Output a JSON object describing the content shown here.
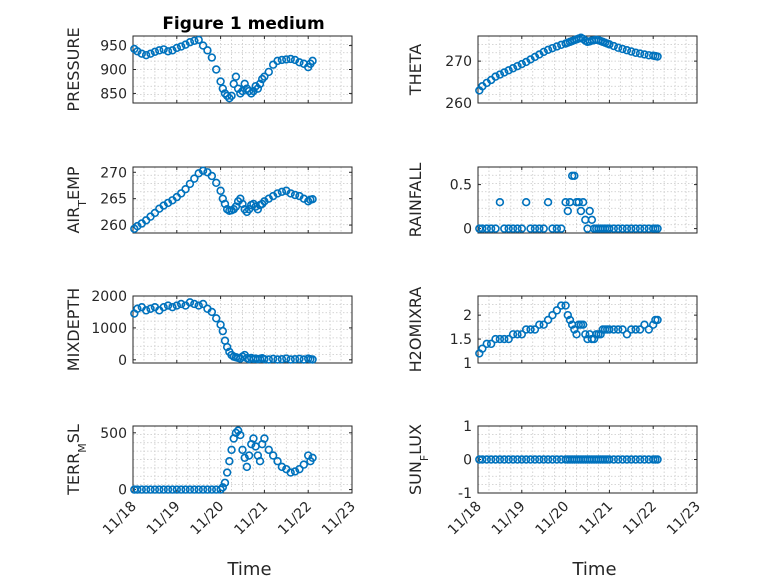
{
  "chart_data": [
    {
      "type": "scatter",
      "title": "Figure 1 medium",
      "ylabel": "PRESSURE",
      "xlabel": "",
      "ylim": [
        830,
        970
      ],
      "yticks": [
        850,
        900,
        950
      ],
      "ytick_labels": [
        "850",
        "900",
        "950"
      ],
      "xlim": [
        0,
        5
      ],
      "xticks": [
        0,
        1,
        2,
        3,
        4,
        5
      ],
      "xtick_labels": [],
      "grid": true,
      "color": "#0072BD",
      "x": [
        0.03,
        0.1,
        0.2,
        0.3,
        0.4,
        0.5,
        0.6,
        0.7,
        0.8,
        0.9,
        1.0,
        1.1,
        1.2,
        1.3,
        1.4,
        1.5,
        1.6,
        1.7,
        1.8,
        1.9,
        2.0,
        2.05,
        2.1,
        2.15,
        2.2,
        2.25,
        2.3,
        2.35,
        2.4,
        2.45,
        2.5,
        2.55,
        2.6,
        2.65,
        2.7,
        2.75,
        2.8,
        2.85,
        2.9,
        2.95,
        3.0,
        3.1,
        3.2,
        3.3,
        3.4,
        3.5,
        3.6,
        3.7,
        3.8,
        3.9,
        4.0,
        4.05,
        4.1
      ],
      "y": [
        943,
        938,
        933,
        930,
        933,
        937,
        940,
        942,
        938,
        940,
        945,
        948,
        952,
        957,
        960,
        962,
        950,
        940,
        925,
        900,
        875,
        860,
        850,
        845,
        840,
        845,
        870,
        885,
        860,
        850,
        855,
        870,
        860,
        855,
        850,
        855,
        865,
        860,
        870,
        880,
        885,
        895,
        910,
        918,
        920,
        921,
        922,
        920,
        915,
        912,
        905,
        912,
        918
      ]
    },
    {
      "type": "scatter",
      "ylabel": "AIR_TEMP",
      "xlabel": "",
      "ylim": [
        258.5,
        271
      ],
      "yticks": [
        260,
        265,
        270
      ],
      "ytick_labels": [
        "260",
        "265",
        "270"
      ],
      "xlim": [
        0,
        5
      ],
      "xticks": [
        0,
        1,
        2,
        3,
        4,
        5
      ],
      "xtick_labels": [],
      "grid": true,
      "color": "#0072BD",
      "x": [
        0.03,
        0.1,
        0.2,
        0.3,
        0.4,
        0.5,
        0.6,
        0.7,
        0.8,
        0.9,
        1.0,
        1.1,
        1.2,
        1.3,
        1.4,
        1.5,
        1.6,
        1.7,
        1.8,
        1.9,
        2.0,
        2.05,
        2.1,
        2.15,
        2.2,
        2.25,
        2.3,
        2.35,
        2.4,
        2.45,
        2.5,
        2.55,
        2.6,
        2.65,
        2.7,
        2.75,
        2.8,
        2.85,
        2.9,
        2.95,
        3.0,
        3.1,
        3.2,
        3.3,
        3.4,
        3.5,
        3.6,
        3.7,
        3.8,
        3.9,
        4.0,
        4.05,
        4.1
      ],
      "y": [
        259.3,
        259.8,
        260.3,
        260.9,
        261.6,
        262.3,
        263.1,
        263.7,
        264.2,
        264.7,
        265.3,
        266.0,
        266.8,
        267.8,
        268.8,
        269.8,
        270.3,
        270.0,
        269.3,
        268.0,
        266.5,
        265.0,
        264.0,
        263.0,
        262.7,
        262.8,
        263.0,
        263.5,
        264.5,
        265.0,
        264.0,
        263.0,
        262.5,
        263.0,
        263.8,
        264.0,
        263.5,
        263.0,
        263.8,
        264.0,
        264.5,
        265.0,
        265.5,
        266.0,
        266.3,
        266.5,
        266.0,
        265.7,
        265.5,
        265.0,
        264.5,
        264.8,
        264.9
      ]
    },
    {
      "type": "scatter",
      "ylabel": "MIXDEPTH",
      "xlabel": "",
      "ylim": [
        -100,
        2000
      ],
      "yticks": [
        0,
        1000,
        2000
      ],
      "ytick_labels": [
        "0",
        "1000",
        "2000"
      ],
      "xlim": [
        0,
        5
      ],
      "xticks": [
        0,
        1,
        2,
        3,
        4,
        5
      ],
      "xtick_labels": [],
      "grid": true,
      "color": "#0072BD",
      "x": [
        0.03,
        0.1,
        0.2,
        0.3,
        0.4,
        0.5,
        0.6,
        0.7,
        0.8,
        0.9,
        1.0,
        1.1,
        1.2,
        1.3,
        1.4,
        1.5,
        1.6,
        1.7,
        1.8,
        1.9,
        2.0,
        2.05,
        2.1,
        2.15,
        2.2,
        2.25,
        2.3,
        2.35,
        2.4,
        2.45,
        2.5,
        2.55,
        2.6,
        2.65,
        2.7,
        2.75,
        2.8,
        2.85,
        2.9,
        2.95,
        3.0,
        3.1,
        3.2,
        3.3,
        3.4,
        3.5,
        3.6,
        3.7,
        3.8,
        3.9,
        4.0,
        4.05,
        4.1
      ],
      "y": [
        1450,
        1600,
        1650,
        1550,
        1600,
        1650,
        1550,
        1650,
        1700,
        1650,
        1700,
        1750,
        1700,
        1800,
        1750,
        1700,
        1750,
        1600,
        1500,
        1300,
        1100,
        900,
        600,
        400,
        250,
        150,
        100,
        80,
        60,
        40,
        100,
        150,
        50,
        20,
        60,
        30,
        40,
        20,
        30,
        50,
        20,
        10,
        30,
        10,
        20,
        40,
        10,
        20,
        30,
        10,
        40,
        20,
        10
      ]
    },
    {
      "type": "scatter",
      "ylabel": "TERR_MSL",
      "xlabel": "Time",
      "ylim": [
        -30,
        560
      ],
      "yticks": [
        0,
        500
      ],
      "ytick_labels": [
        "0",
        "500"
      ],
      "xlim": [
        0,
        5
      ],
      "xticks": [
        0,
        1,
        2,
        3,
        4,
        5
      ],
      "xtick_labels": [
        "11/18",
        "11/19",
        "11/20",
        "11/21",
        "11/22",
        "11/23"
      ],
      "grid": true,
      "color": "#0072BD",
      "x": [
        0.03,
        0.1,
        0.2,
        0.3,
        0.4,
        0.5,
        0.6,
        0.7,
        0.8,
        0.9,
        1.0,
        1.1,
        1.2,
        1.3,
        1.4,
        1.5,
        1.6,
        1.7,
        1.8,
        1.9,
        2.0,
        2.05,
        2.1,
        2.15,
        2.2,
        2.25,
        2.3,
        2.35,
        2.4,
        2.45,
        2.5,
        2.55,
        2.6,
        2.65,
        2.7,
        2.75,
        2.8,
        2.85,
        2.9,
        2.95,
        3.0,
        3.1,
        3.2,
        3.3,
        3.4,
        3.5,
        3.6,
        3.7,
        3.8,
        3.9,
        4.0,
        4.05,
        4.1
      ],
      "y": [
        0,
        0,
        0,
        0,
        0,
        0,
        0,
        0,
        0,
        0,
        0,
        0,
        0,
        0,
        0,
        0,
        0,
        0,
        0,
        0,
        0,
        20,
        60,
        150,
        250,
        350,
        450,
        500,
        520,
        480,
        350,
        280,
        200,
        300,
        400,
        450,
        380,
        300,
        250,
        400,
        450,
        350,
        300,
        250,
        200,
        180,
        150,
        160,
        180,
        220,
        300,
        250,
        280
      ]
    },
    {
      "type": "scatter",
      "ylabel": "THETA",
      "xlabel": "",
      "ylim": [
        260,
        276
      ],
      "yticks": [
        260,
        270
      ],
      "ytick_labels": [
        "260",
        "270"
      ],
      "xlim": [
        0,
        5
      ],
      "xticks": [
        0,
        1,
        2,
        3,
        4,
        5
      ],
      "xtick_labels": [],
      "grid": true,
      "color": "#0072BD",
      "x": [
        0.03,
        0.1,
        0.2,
        0.3,
        0.4,
        0.5,
        0.6,
        0.7,
        0.8,
        0.9,
        1.0,
        1.1,
        1.2,
        1.3,
        1.4,
        1.5,
        1.6,
        1.7,
        1.8,
        1.9,
        2.0,
        2.05,
        2.1,
        2.15,
        2.2,
        2.25,
        2.3,
        2.35,
        2.4,
        2.45,
        2.5,
        2.55,
        2.6,
        2.65,
        2.7,
        2.75,
        2.8,
        2.85,
        2.9,
        2.95,
        3.0,
        3.1,
        3.2,
        3.3,
        3.4,
        3.5,
        3.6,
        3.7,
        3.8,
        3.9,
        4.0,
        4.05,
        4.1
      ],
      "y": [
        263.0,
        264.0,
        264.8,
        265.5,
        266.3,
        266.8,
        267.3,
        267.8,
        268.3,
        268.8,
        269.3,
        269.8,
        270.4,
        271.0,
        271.6,
        272.2,
        272.7,
        273.1,
        273.5,
        273.9,
        274.2,
        274.4,
        274.6,
        274.8,
        275.0,
        275.2,
        275.4,
        275.6,
        275.3,
        274.9,
        274.6,
        274.7,
        274.9,
        275.0,
        275.1,
        275.0,
        274.8,
        274.6,
        274.4,
        274.2,
        274.0,
        273.6,
        273.2,
        272.9,
        272.6,
        272.3,
        272.0,
        271.8,
        271.6,
        271.4,
        271.3,
        271.2,
        271.1
      ]
    },
    {
      "type": "scatter",
      "ylabel": "RAINFALL",
      "xlabel": "",
      "ylim": [
        -0.05,
        0.7
      ],
      "yticks": [
        0,
        0.5
      ],
      "ytick_labels": [
        "0",
        "0.5"
      ],
      "xlim": [
        0,
        5
      ],
      "xticks": [
        0,
        1,
        2,
        3,
        4,
        5
      ],
      "xtick_labels": [],
      "grid": true,
      "color": "#0072BD",
      "x": [
        0.03,
        0.1,
        0.2,
        0.3,
        0.4,
        0.5,
        0.6,
        0.7,
        0.8,
        0.9,
        1.0,
        1.1,
        1.2,
        1.3,
        1.4,
        1.5,
        1.6,
        1.7,
        1.8,
        1.9,
        2.0,
        2.05,
        2.1,
        2.15,
        2.2,
        2.25,
        2.3,
        2.35,
        2.4,
        2.45,
        2.5,
        2.55,
        2.6,
        2.65,
        2.7,
        2.75,
        2.8,
        2.85,
        2.9,
        2.95,
        3.0,
        3.1,
        3.2,
        3.3,
        3.4,
        3.5,
        3.6,
        3.7,
        3.8,
        3.9,
        4.0,
        4.05,
        4.1
      ],
      "y": [
        0,
        0,
        0,
        0,
        0,
        0.3,
        0,
        0,
        0,
        0,
        0,
        0.3,
        0,
        0,
        0,
        0,
        0.3,
        0,
        0,
        0,
        0.3,
        0.2,
        0.3,
        0.6,
        0.6,
        0.3,
        0.3,
        0.2,
        0.3,
        0.1,
        0,
        0.2,
        0.1,
        0,
        0,
        0,
        0,
        0,
        0,
        0,
        0,
        0,
        0,
        0,
        0,
        0,
        0,
        0,
        0,
        0,
        0,
        0,
        0
      ]
    },
    {
      "type": "scatter",
      "ylabel": "H2OMIXRA",
      "xlabel": "",
      "ylim": [
        1,
        2.4
      ],
      "yticks": [
        1,
        1.5,
        2
      ],
      "ytick_labels": [
        "1",
        "1.5",
        "2"
      ],
      "xlim": [
        0,
        5
      ],
      "xticks": [
        0,
        1,
        2,
        3,
        4,
        5
      ],
      "xtick_labels": [],
      "grid": true,
      "color": "#0072BD",
      "x": [
        0.03,
        0.1,
        0.2,
        0.3,
        0.4,
        0.5,
        0.6,
        0.7,
        0.8,
        0.9,
        1.0,
        1.1,
        1.2,
        1.3,
        1.4,
        1.5,
        1.6,
        1.7,
        1.8,
        1.9,
        2.0,
        2.05,
        2.1,
        2.15,
        2.2,
        2.25,
        2.3,
        2.35,
        2.4,
        2.45,
        2.5,
        2.55,
        2.6,
        2.65,
        2.7,
        2.75,
        2.8,
        2.85,
        2.9,
        2.95,
        3.0,
        3.1,
        3.2,
        3.3,
        3.4,
        3.5,
        3.6,
        3.7,
        3.8,
        3.9,
        4.0,
        4.05,
        4.1
      ],
      "y": [
        1.2,
        1.3,
        1.4,
        1.4,
        1.5,
        1.5,
        1.5,
        1.5,
        1.6,
        1.6,
        1.6,
        1.7,
        1.7,
        1.7,
        1.8,
        1.8,
        1.9,
        2.0,
        2.1,
        2.2,
        2.2,
        2.0,
        1.9,
        1.8,
        1.7,
        1.6,
        1.8,
        1.8,
        1.8,
        1.6,
        1.5,
        1.6,
        1.5,
        1.5,
        1.6,
        1.6,
        1.6,
        1.7,
        1.7,
        1.7,
        1.7,
        1.7,
        1.7,
        1.7,
        1.6,
        1.7,
        1.7,
        1.7,
        1.8,
        1.7,
        1.8,
        1.9,
        1.9
      ]
    },
    {
      "type": "scatter",
      "ylabel": "SUN_FLUX",
      "xlabel": "Time",
      "ylim": [
        -1,
        1
      ],
      "yticks": [
        -1,
        0,
        1
      ],
      "ytick_labels": [
        "-1",
        "0",
        "1"
      ],
      "xlim": [
        0,
        5
      ],
      "xticks": [
        0,
        1,
        2,
        3,
        4,
        5
      ],
      "xtick_labels": [
        "11/18",
        "11/19",
        "11/20",
        "11/21",
        "11/22",
        "11/23"
      ],
      "grid": true,
      "color": "#0072BD",
      "x": [
        0.03,
        0.1,
        0.2,
        0.3,
        0.4,
        0.5,
        0.6,
        0.7,
        0.8,
        0.9,
        1.0,
        1.1,
        1.2,
        1.3,
        1.4,
        1.5,
        1.6,
        1.7,
        1.8,
        1.9,
        2.0,
        2.05,
        2.1,
        2.15,
        2.2,
        2.25,
        2.3,
        2.35,
        2.4,
        2.45,
        2.5,
        2.55,
        2.6,
        2.65,
        2.7,
        2.75,
        2.8,
        2.85,
        2.9,
        2.95,
        3.0,
        3.1,
        3.2,
        3.3,
        3.4,
        3.5,
        3.6,
        3.7,
        3.8,
        3.9,
        4.0,
        4.05,
        4.1
      ],
      "y": [
        0,
        0,
        0,
        0,
        0,
        0,
        0,
        0,
        0,
        0,
        0,
        0,
        0,
        0,
        0,
        0,
        0,
        0,
        0,
        0,
        0,
        0,
        0,
        0,
        0,
        0,
        0,
        0,
        0,
        0,
        0,
        0,
        0,
        0,
        0,
        0,
        0,
        0,
        0,
        0,
        0,
        0,
        0,
        0,
        0,
        0,
        0,
        0,
        0,
        0,
        0,
        0,
        0
      ]
    }
  ]
}
